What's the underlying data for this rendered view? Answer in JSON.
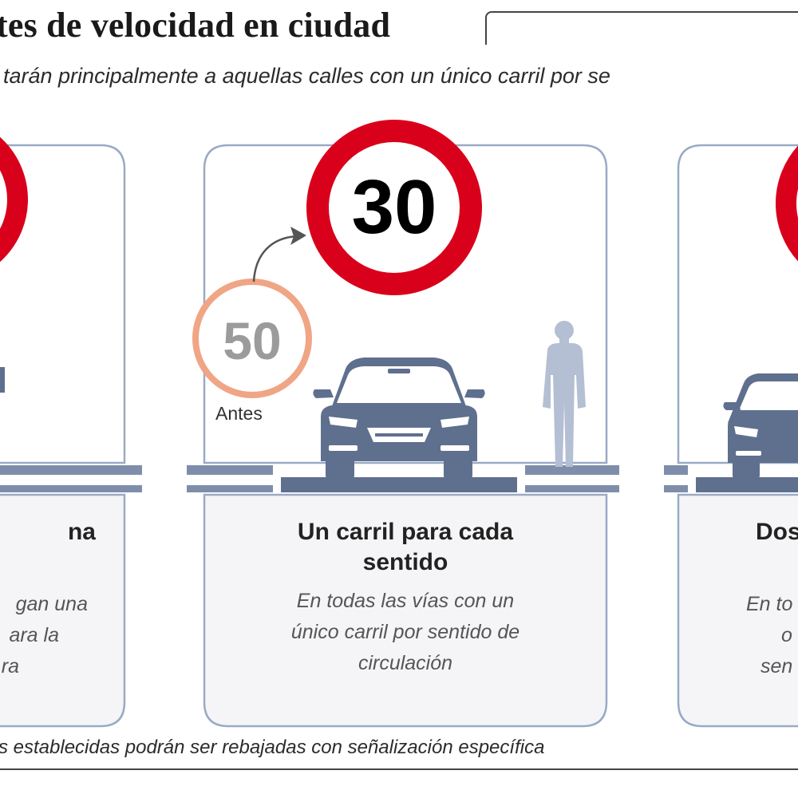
{
  "title": "tes de velocidad en ciudad",
  "subtitle": "tarán principalmente a aquellas calles con un único carril por se",
  "colors": {
    "sign_red": "#d9001b",
    "panel_bg": "#f5f5f7",
    "panel_border": "#9aaac6",
    "vehicle": "#5f6f8e",
    "pedestrian": "#b5bfd3",
    "old_sign": "#f0a585",
    "old_number": "#9b9b9b"
  },
  "cards": [
    {
      "title": "na",
      "desc_lines": [
        "gan una",
        "ara la",
        "ra"
      ]
    },
    {
      "sign_value": "30",
      "old_sign_value": "50",
      "old_label": "Antes",
      "title_lines": [
        "Un carril para cada",
        "sentido"
      ],
      "desc_lines": [
        "En todas las vías con un",
        "único carril por sentido de",
        "circulación"
      ]
    },
    {
      "title": "Dos",
      "desc_lines": [
        "En to",
        "o",
        "sen"
      ]
    }
  ],
  "footnote": "s establecidas podrán ser rebajadas con señalización específica"
}
